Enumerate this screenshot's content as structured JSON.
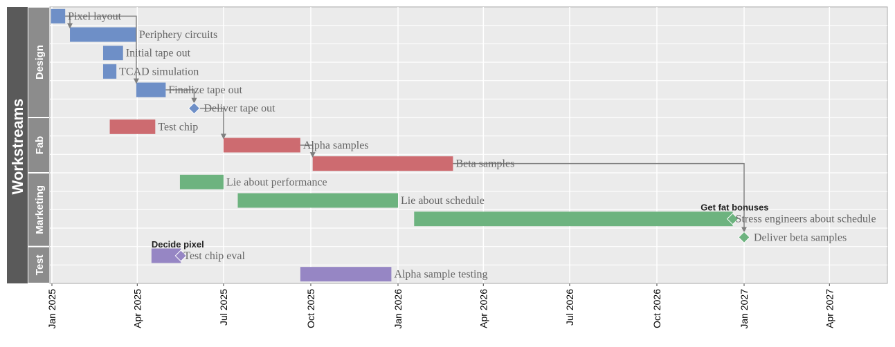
{
  "chart_data": {
    "type": "gantt",
    "axis_title": "Workstreams",
    "groups": [
      {
        "name": "Design",
        "rows": [
          0,
          5
        ]
      },
      {
        "name": "Fab",
        "rows": [
          6,
          8
        ]
      },
      {
        "name": "Marketing",
        "rows": [
          9,
          12
        ]
      },
      {
        "name": "Test",
        "rows": [
          13,
          14
        ]
      }
    ],
    "x_ticks": [
      "Jan 2025",
      "Apr 2025",
      "Jul 2025",
      "Oct 2025",
      "Jan 2026",
      "Apr 2026",
      "Jul 2026",
      "Oct 2026",
      "Jan 2027",
      "Apr 2027"
    ],
    "tasks": [
      {
        "label": "Pixel layout",
        "row": 0,
        "start": "2024-12-31",
        "end": "2025-01-15",
        "kind": "bar",
        "group": "Design"
      },
      {
        "label": "Periphery circuits",
        "row": 1,
        "start": "2025-01-20",
        "end": "2025-03-31",
        "kind": "bar",
        "group": "Design"
      },
      {
        "label": "Initial tape out",
        "row": 2,
        "start": "2025-02-24",
        "end": "2025-03-17",
        "kind": "bar",
        "group": "Design"
      },
      {
        "label": "TCAD simulation",
        "row": 3,
        "start": "2025-02-24",
        "end": "2025-03-10",
        "kind": "bar",
        "group": "Design"
      },
      {
        "label": "Finalize tape out",
        "row": 4,
        "start": "2025-03-31",
        "end": "2025-05-01",
        "kind": "bar",
        "group": "Design"
      },
      {
        "label": "Deliver tape out",
        "row": 5,
        "date": "2025-05-31",
        "kind": "milestone",
        "group": "Design"
      },
      {
        "label": "Test chip",
        "row": 6,
        "start": "2025-03-03",
        "end": "2025-04-20",
        "kind": "bar",
        "group": "Fab"
      },
      {
        "label": "Alpha samples",
        "row": 7,
        "start": "2025-07-01",
        "end": "2025-09-20",
        "kind": "bar",
        "group": "Fab"
      },
      {
        "label": "Beta samples",
        "row": 8,
        "start": "2025-10-03",
        "end": "2026-02-28",
        "kind": "bar",
        "group": "Fab"
      },
      {
        "label": "Lie about performance",
        "row": 9,
        "start": "2025-05-16",
        "end": "2025-07-01",
        "kind": "bar",
        "group": "Marketing"
      },
      {
        "label": "Lie about schedule",
        "row": 10,
        "start": "2025-07-16",
        "end": "2026-01-01",
        "kind": "bar",
        "group": "Marketing"
      },
      {
        "label": "Stress engineers about schedule",
        "row": 11,
        "start": "2026-01-18",
        "end": "2026-12-20",
        "kind": "bar",
        "group": "Marketing"
      },
      {
        "label": "Deliver beta samples",
        "row": 12,
        "date": "2027-01-01",
        "kind": "milestone",
        "group": "Marketing"
      },
      {
        "label": "Test chip eval",
        "row": 13,
        "start": "2025-04-16",
        "end": "2025-05-17",
        "kind": "bar",
        "group": "Test"
      },
      {
        "label": "Alpha sample testing",
        "row": 14,
        "start": "2025-09-20",
        "end": "2025-12-25",
        "kind": "bar",
        "group": "Test"
      }
    ],
    "inline_milestones": [
      {
        "row": 11,
        "date": "2026-12-20",
        "annotation": "Get fat bonuses",
        "group": "Marketing"
      },
      {
        "row": 13,
        "date": "2025-05-17",
        "annotation": "Decide pixel",
        "group": "Test"
      }
    ],
    "dependencies": [
      {
        "from": 0,
        "to": 1
      },
      {
        "from": 0,
        "to": 4
      },
      {
        "from": 4,
        "to": 5
      },
      {
        "from": 5,
        "to": 7
      },
      {
        "from": 7,
        "to": 8
      },
      {
        "from": 8,
        "to": 12
      }
    ],
    "colors": {
      "Design": "#6e8fc7",
      "Fab": "#cd6b70",
      "Marketing": "#6db37f",
      "Test": "#9686c4",
      "panel": "#ebebeb",
      "grid": "#ffffff",
      "strip_outer": "#5a5a5a",
      "strip_inner": "#8c8c8c",
      "arrow": "#808080"
    }
  }
}
